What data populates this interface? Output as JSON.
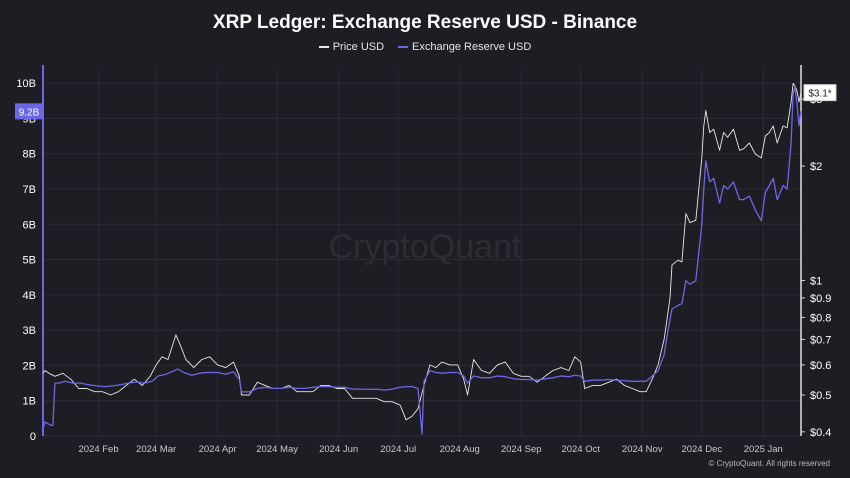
{
  "chart_data": {
    "type": "line",
    "title": "XRP Ledger: Exchange Reserve USD - Binance",
    "watermark": "CryptoQuant",
    "footer": "© CryptoQuant. All rights reserved",
    "background": "#1e1d24",
    "grid": true,
    "legend_position": "top-center",
    "x_ticks": [
      "2024 Feb",
      "2024 Mar",
      "2024 Apr",
      "2024 May",
      "2024 Jun",
      "2024 Jul",
      "2024 Aug",
      "2024 Sep",
      "2024 Oct",
      "2024 Nov",
      "2024 Dec",
      "2025 Jan"
    ],
    "x_tick_dates": [
      "2024-02-01",
      "2024-03-01",
      "2024-04-01",
      "2024-05-01",
      "2024-06-01",
      "2024-07-01",
      "2024-08-01",
      "2024-09-01",
      "2024-10-01",
      "2024-11-01",
      "2024-12-01",
      "2025-01-01"
    ],
    "x_range": [
      "2024-01-04",
      "2025-01-20"
    ],
    "left_axis": {
      "ticks": [
        0,
        1,
        2,
        3,
        4,
        5,
        6,
        7,
        8,
        9,
        10
      ],
      "tick_labels": [
        "0",
        "1B",
        "2B",
        "3B",
        "4B",
        "5B",
        "6B",
        "7B",
        "8B",
        "9B",
        "10B"
      ],
      "range": [
        0,
        10.4
      ],
      "current_label": "9.2B",
      "current_value": 9.2,
      "current_color": "#6c67e6"
    },
    "right_axis": {
      "scale": "log",
      "ticks": [
        0.4,
        0.5,
        0.6,
        0.7,
        0.8,
        0.9,
        1,
        2,
        3
      ],
      "tick_labels": [
        "$0.4",
        "$0.5",
        "$0.6",
        "$0.7",
        "$0.8",
        "$0.9",
        "$1",
        "$2",
        "$3"
      ],
      "range": [
        0.39,
        3.6
      ],
      "current_label": "$3.1*",
      "current_value": 3.12
    },
    "series": [
      {
        "name": "Price USD",
        "color": "#e8e8e8",
        "axis": "right",
        "points": [
          [
            "2024-01-04",
            0.57
          ],
          [
            "2024-01-05",
            0.58
          ],
          [
            "2024-01-07",
            0.57
          ],
          [
            "2024-01-10",
            0.56
          ],
          [
            "2024-01-14",
            0.57
          ],
          [
            "2024-01-18",
            0.55
          ],
          [
            "2024-01-22",
            0.52
          ],
          [
            "2024-01-26",
            0.52
          ],
          [
            "2024-01-30",
            0.51
          ],
          [
            "2024-02-03",
            0.51
          ],
          [
            "2024-02-07",
            0.5
          ],
          [
            "2024-02-11",
            0.51
          ],
          [
            "2024-02-15",
            0.53
          ],
          [
            "2024-02-19",
            0.55
          ],
          [
            "2024-02-23",
            0.53
          ],
          [
            "2024-02-27",
            0.56
          ],
          [
            "2024-03-01",
            0.6
          ],
          [
            "2024-03-04",
            0.63
          ],
          [
            "2024-03-07",
            0.62
          ],
          [
            "2024-03-11",
            0.72
          ],
          [
            "2024-03-13",
            0.68
          ],
          [
            "2024-03-16",
            0.62
          ],
          [
            "2024-03-20",
            0.59
          ],
          [
            "2024-03-24",
            0.62
          ],
          [
            "2024-03-28",
            0.63
          ],
          [
            "2024-04-01",
            0.6
          ],
          [
            "2024-04-05",
            0.59
          ],
          [
            "2024-04-09",
            0.61
          ],
          [
            "2024-04-12",
            0.56
          ],
          [
            "2024-04-13",
            0.5
          ],
          [
            "2024-04-17",
            0.5
          ],
          [
            "2024-04-21",
            0.54
          ],
          [
            "2024-04-25",
            0.53
          ],
          [
            "2024-04-29",
            0.52
          ],
          [
            "2024-05-03",
            0.52
          ],
          [
            "2024-05-07",
            0.53
          ],
          [
            "2024-05-11",
            0.51
          ],
          [
            "2024-05-15",
            0.51
          ],
          [
            "2024-05-19",
            0.51
          ],
          [
            "2024-05-23",
            0.53
          ],
          [
            "2024-05-27",
            0.53
          ],
          [
            "2024-05-31",
            0.52
          ],
          [
            "2024-06-04",
            0.52
          ],
          [
            "2024-06-08",
            0.49
          ],
          [
            "2024-06-12",
            0.49
          ],
          [
            "2024-06-16",
            0.49
          ],
          [
            "2024-06-20",
            0.49
          ],
          [
            "2024-06-24",
            0.48
          ],
          [
            "2024-06-28",
            0.48
          ],
          [
            "2024-07-02",
            0.47
          ],
          [
            "2024-07-05",
            0.43
          ],
          [
            "2024-07-08",
            0.44
          ],
          [
            "2024-07-11",
            0.46
          ],
          [
            "2024-07-14",
            0.53
          ],
          [
            "2024-07-17",
            0.6
          ],
          [
            "2024-07-20",
            0.59
          ],
          [
            "2024-07-23",
            0.61
          ],
          [
            "2024-07-27",
            0.6
          ],
          [
            "2024-07-31",
            0.6
          ],
          [
            "2024-08-03",
            0.55
          ],
          [
            "2024-08-05",
            0.5
          ],
          [
            "2024-08-08",
            0.62
          ],
          [
            "2024-08-12",
            0.58
          ],
          [
            "2024-08-16",
            0.57
          ],
          [
            "2024-08-20",
            0.6
          ],
          [
            "2024-08-24",
            0.61
          ],
          [
            "2024-08-28",
            0.57
          ],
          [
            "2024-09-01",
            0.56
          ],
          [
            "2024-09-05",
            0.56
          ],
          [
            "2024-09-09",
            0.54
          ],
          [
            "2024-09-13",
            0.56
          ],
          [
            "2024-09-17",
            0.58
          ],
          [
            "2024-09-21",
            0.59
          ],
          [
            "2024-09-25",
            0.58
          ],
          [
            "2024-09-28",
            0.63
          ],
          [
            "2024-10-01",
            0.61
          ],
          [
            "2024-10-03",
            0.52
          ],
          [
            "2024-10-07",
            0.53
          ],
          [
            "2024-10-11",
            0.53
          ],
          [
            "2024-10-15",
            0.54
          ],
          [
            "2024-10-19",
            0.55
          ],
          [
            "2024-10-23",
            0.53
          ],
          [
            "2024-10-27",
            0.52
          ],
          [
            "2024-10-31",
            0.51
          ],
          [
            "2024-11-03",
            0.51
          ],
          [
            "2024-11-06",
            0.55
          ],
          [
            "2024-11-09",
            0.6
          ],
          [
            "2024-11-12",
            0.7
          ],
          [
            "2024-11-13",
            0.76
          ],
          [
            "2024-11-15",
            0.9
          ],
          [
            "2024-11-16",
            1.1
          ],
          [
            "2024-11-19",
            1.13
          ],
          [
            "2024-11-21",
            1.12
          ],
          [
            "2024-11-23",
            1.5
          ],
          [
            "2024-11-25",
            1.42
          ],
          [
            "2024-11-28",
            1.44
          ],
          [
            "2024-12-01",
            2.1
          ],
          [
            "2024-12-02",
            2.55
          ],
          [
            "2024-12-03",
            2.8
          ],
          [
            "2024-12-05",
            2.45
          ],
          [
            "2024-12-07",
            2.5
          ],
          [
            "2024-12-10",
            2.2
          ],
          [
            "2024-12-12",
            2.45
          ],
          [
            "2024-12-14",
            2.38
          ],
          [
            "2024-12-17",
            2.5
          ],
          [
            "2024-12-20",
            2.2
          ],
          [
            "2024-12-22",
            2.22
          ],
          [
            "2024-12-25",
            2.3
          ],
          [
            "2024-12-28",
            2.15
          ],
          [
            "2024-12-31",
            2.1
          ],
          [
            "2025-01-02",
            2.4
          ],
          [
            "2025-01-04",
            2.45
          ],
          [
            "2025-01-06",
            2.55
          ],
          [
            "2025-01-08",
            2.3
          ],
          [
            "2025-01-11",
            2.55
          ],
          [
            "2025-01-13",
            2.52
          ],
          [
            "2025-01-15",
            2.95
          ],
          [
            "2025-01-16",
            3.3
          ],
          [
            "2025-01-17",
            3.25
          ],
          [
            "2025-01-18",
            3.15
          ],
          [
            "2025-01-19",
            2.95
          ],
          [
            "2025-01-20",
            3.12
          ]
        ]
      },
      {
        "name": "Exchange Reserve USD",
        "color": "#6c67e6",
        "axis": "left",
        "points": [
          [
            "2024-01-04",
            0.2
          ],
          [
            "2024-01-05",
            0.4
          ],
          [
            "2024-01-08",
            0.3
          ],
          [
            "2024-01-09",
            0.3
          ],
          [
            "2024-01-10",
            1.5
          ],
          [
            "2024-01-12",
            1.5
          ],
          [
            "2024-01-15",
            1.55
          ],
          [
            "2024-01-19",
            1.5
          ],
          [
            "2024-01-23",
            1.5
          ],
          [
            "2024-01-27",
            1.45
          ],
          [
            "2024-01-31",
            1.42
          ],
          [
            "2024-02-04",
            1.4
          ],
          [
            "2024-02-08",
            1.42
          ],
          [
            "2024-02-12",
            1.45
          ],
          [
            "2024-02-16",
            1.5
          ],
          [
            "2024-02-20",
            1.53
          ],
          [
            "2024-02-24",
            1.5
          ],
          [
            "2024-02-28",
            1.55
          ],
          [
            "2024-03-02",
            1.7
          ],
          [
            "2024-03-06",
            1.75
          ],
          [
            "2024-03-10",
            1.85
          ],
          [
            "2024-03-12",
            1.9
          ],
          [
            "2024-03-15",
            1.8
          ],
          [
            "2024-03-19",
            1.72
          ],
          [
            "2024-03-23",
            1.78
          ],
          [
            "2024-03-27",
            1.8
          ],
          [
            "2024-04-01",
            1.8
          ],
          [
            "2024-04-05",
            1.75
          ],
          [
            "2024-04-09",
            1.82
          ],
          [
            "2024-04-12",
            1.6
          ],
          [
            "2024-04-13",
            1.25
          ],
          [
            "2024-04-17",
            1.25
          ],
          [
            "2024-04-21",
            1.35
          ],
          [
            "2024-04-25",
            1.38
          ],
          [
            "2024-04-29",
            1.35
          ],
          [
            "2024-05-03",
            1.35
          ],
          [
            "2024-05-07",
            1.38
          ],
          [
            "2024-05-11",
            1.35
          ],
          [
            "2024-05-15",
            1.35
          ],
          [
            "2024-05-19",
            1.38
          ],
          [
            "2024-05-23",
            1.4
          ],
          [
            "2024-05-27",
            1.4
          ],
          [
            "2024-05-31",
            1.38
          ],
          [
            "2024-06-04",
            1.38
          ],
          [
            "2024-06-08",
            1.33
          ],
          [
            "2024-06-12",
            1.33
          ],
          [
            "2024-06-16",
            1.32
          ],
          [
            "2024-06-20",
            1.33
          ],
          [
            "2024-06-24",
            1.3
          ],
          [
            "2024-06-28",
            1.33
          ],
          [
            "2024-07-02",
            1.38
          ],
          [
            "2024-07-05",
            1.4
          ],
          [
            "2024-07-08",
            1.4
          ],
          [
            "2024-07-11",
            1.35
          ],
          [
            "2024-07-13",
            0.05
          ],
          [
            "2024-07-14",
            1.55
          ],
          [
            "2024-07-17",
            1.85
          ],
          [
            "2024-07-20",
            1.8
          ],
          [
            "2024-07-23",
            1.78
          ],
          [
            "2024-07-27",
            1.8
          ],
          [
            "2024-07-31",
            1.8
          ],
          [
            "2024-08-03",
            1.7
          ],
          [
            "2024-08-05",
            1.5
          ],
          [
            "2024-08-08",
            1.7
          ],
          [
            "2024-08-12",
            1.65
          ],
          [
            "2024-08-16",
            1.65
          ],
          [
            "2024-08-20",
            1.7
          ],
          [
            "2024-08-24",
            1.68
          ],
          [
            "2024-08-28",
            1.62
          ],
          [
            "2024-09-01",
            1.6
          ],
          [
            "2024-09-05",
            1.6
          ],
          [
            "2024-09-09",
            1.58
          ],
          [
            "2024-09-13",
            1.62
          ],
          [
            "2024-09-17",
            1.65
          ],
          [
            "2024-09-21",
            1.7
          ],
          [
            "2024-09-25",
            1.68
          ],
          [
            "2024-09-28",
            1.72
          ],
          [
            "2024-10-01",
            1.7
          ],
          [
            "2024-10-03",
            1.55
          ],
          [
            "2024-10-07",
            1.58
          ],
          [
            "2024-10-11",
            1.58
          ],
          [
            "2024-10-15",
            1.6
          ],
          [
            "2024-10-19",
            1.58
          ],
          [
            "2024-10-23",
            1.57
          ],
          [
            "2024-10-27",
            1.55
          ],
          [
            "2024-10-31",
            1.55
          ],
          [
            "2024-11-03",
            1.55
          ],
          [
            "2024-11-06",
            1.7
          ],
          [
            "2024-11-09",
            1.85
          ],
          [
            "2024-11-12",
            2.3
          ],
          [
            "2024-11-14",
            3.0
          ],
          [
            "2024-11-16",
            3.6
          ],
          [
            "2024-11-19",
            3.7
          ],
          [
            "2024-11-21",
            3.75
          ],
          [
            "2024-11-23",
            4.4
          ],
          [
            "2024-11-25",
            4.3
          ],
          [
            "2024-11-28",
            4.4
          ],
          [
            "2024-12-01",
            6.0
          ],
          [
            "2024-12-02",
            7.0
          ],
          [
            "2024-12-03",
            7.8
          ],
          [
            "2024-12-05",
            7.2
          ],
          [
            "2024-12-07",
            7.3
          ],
          [
            "2024-12-10",
            6.6
          ],
          [
            "2024-12-12",
            7.1
          ],
          [
            "2024-12-14",
            7.0
          ],
          [
            "2024-12-17",
            7.2
          ],
          [
            "2024-12-20",
            6.7
          ],
          [
            "2024-12-22",
            6.7
          ],
          [
            "2024-12-25",
            6.8
          ],
          [
            "2024-12-28",
            6.4
          ],
          [
            "2024-12-31",
            6.1
          ],
          [
            "2025-01-02",
            6.9
          ],
          [
            "2025-01-04",
            7.1
          ],
          [
            "2025-01-06",
            7.3
          ],
          [
            "2025-01-08",
            6.7
          ],
          [
            "2025-01-11",
            7.1
          ],
          [
            "2025-01-13",
            7.0
          ],
          [
            "2025-01-15",
            8.3
          ],
          [
            "2025-01-16",
            9.7
          ],
          [
            "2025-01-17",
            9.9
          ],
          [
            "2025-01-18",
            9.4
          ],
          [
            "2025-01-19",
            8.8
          ],
          [
            "2025-01-20",
            9.2
          ]
        ]
      }
    ]
  }
}
